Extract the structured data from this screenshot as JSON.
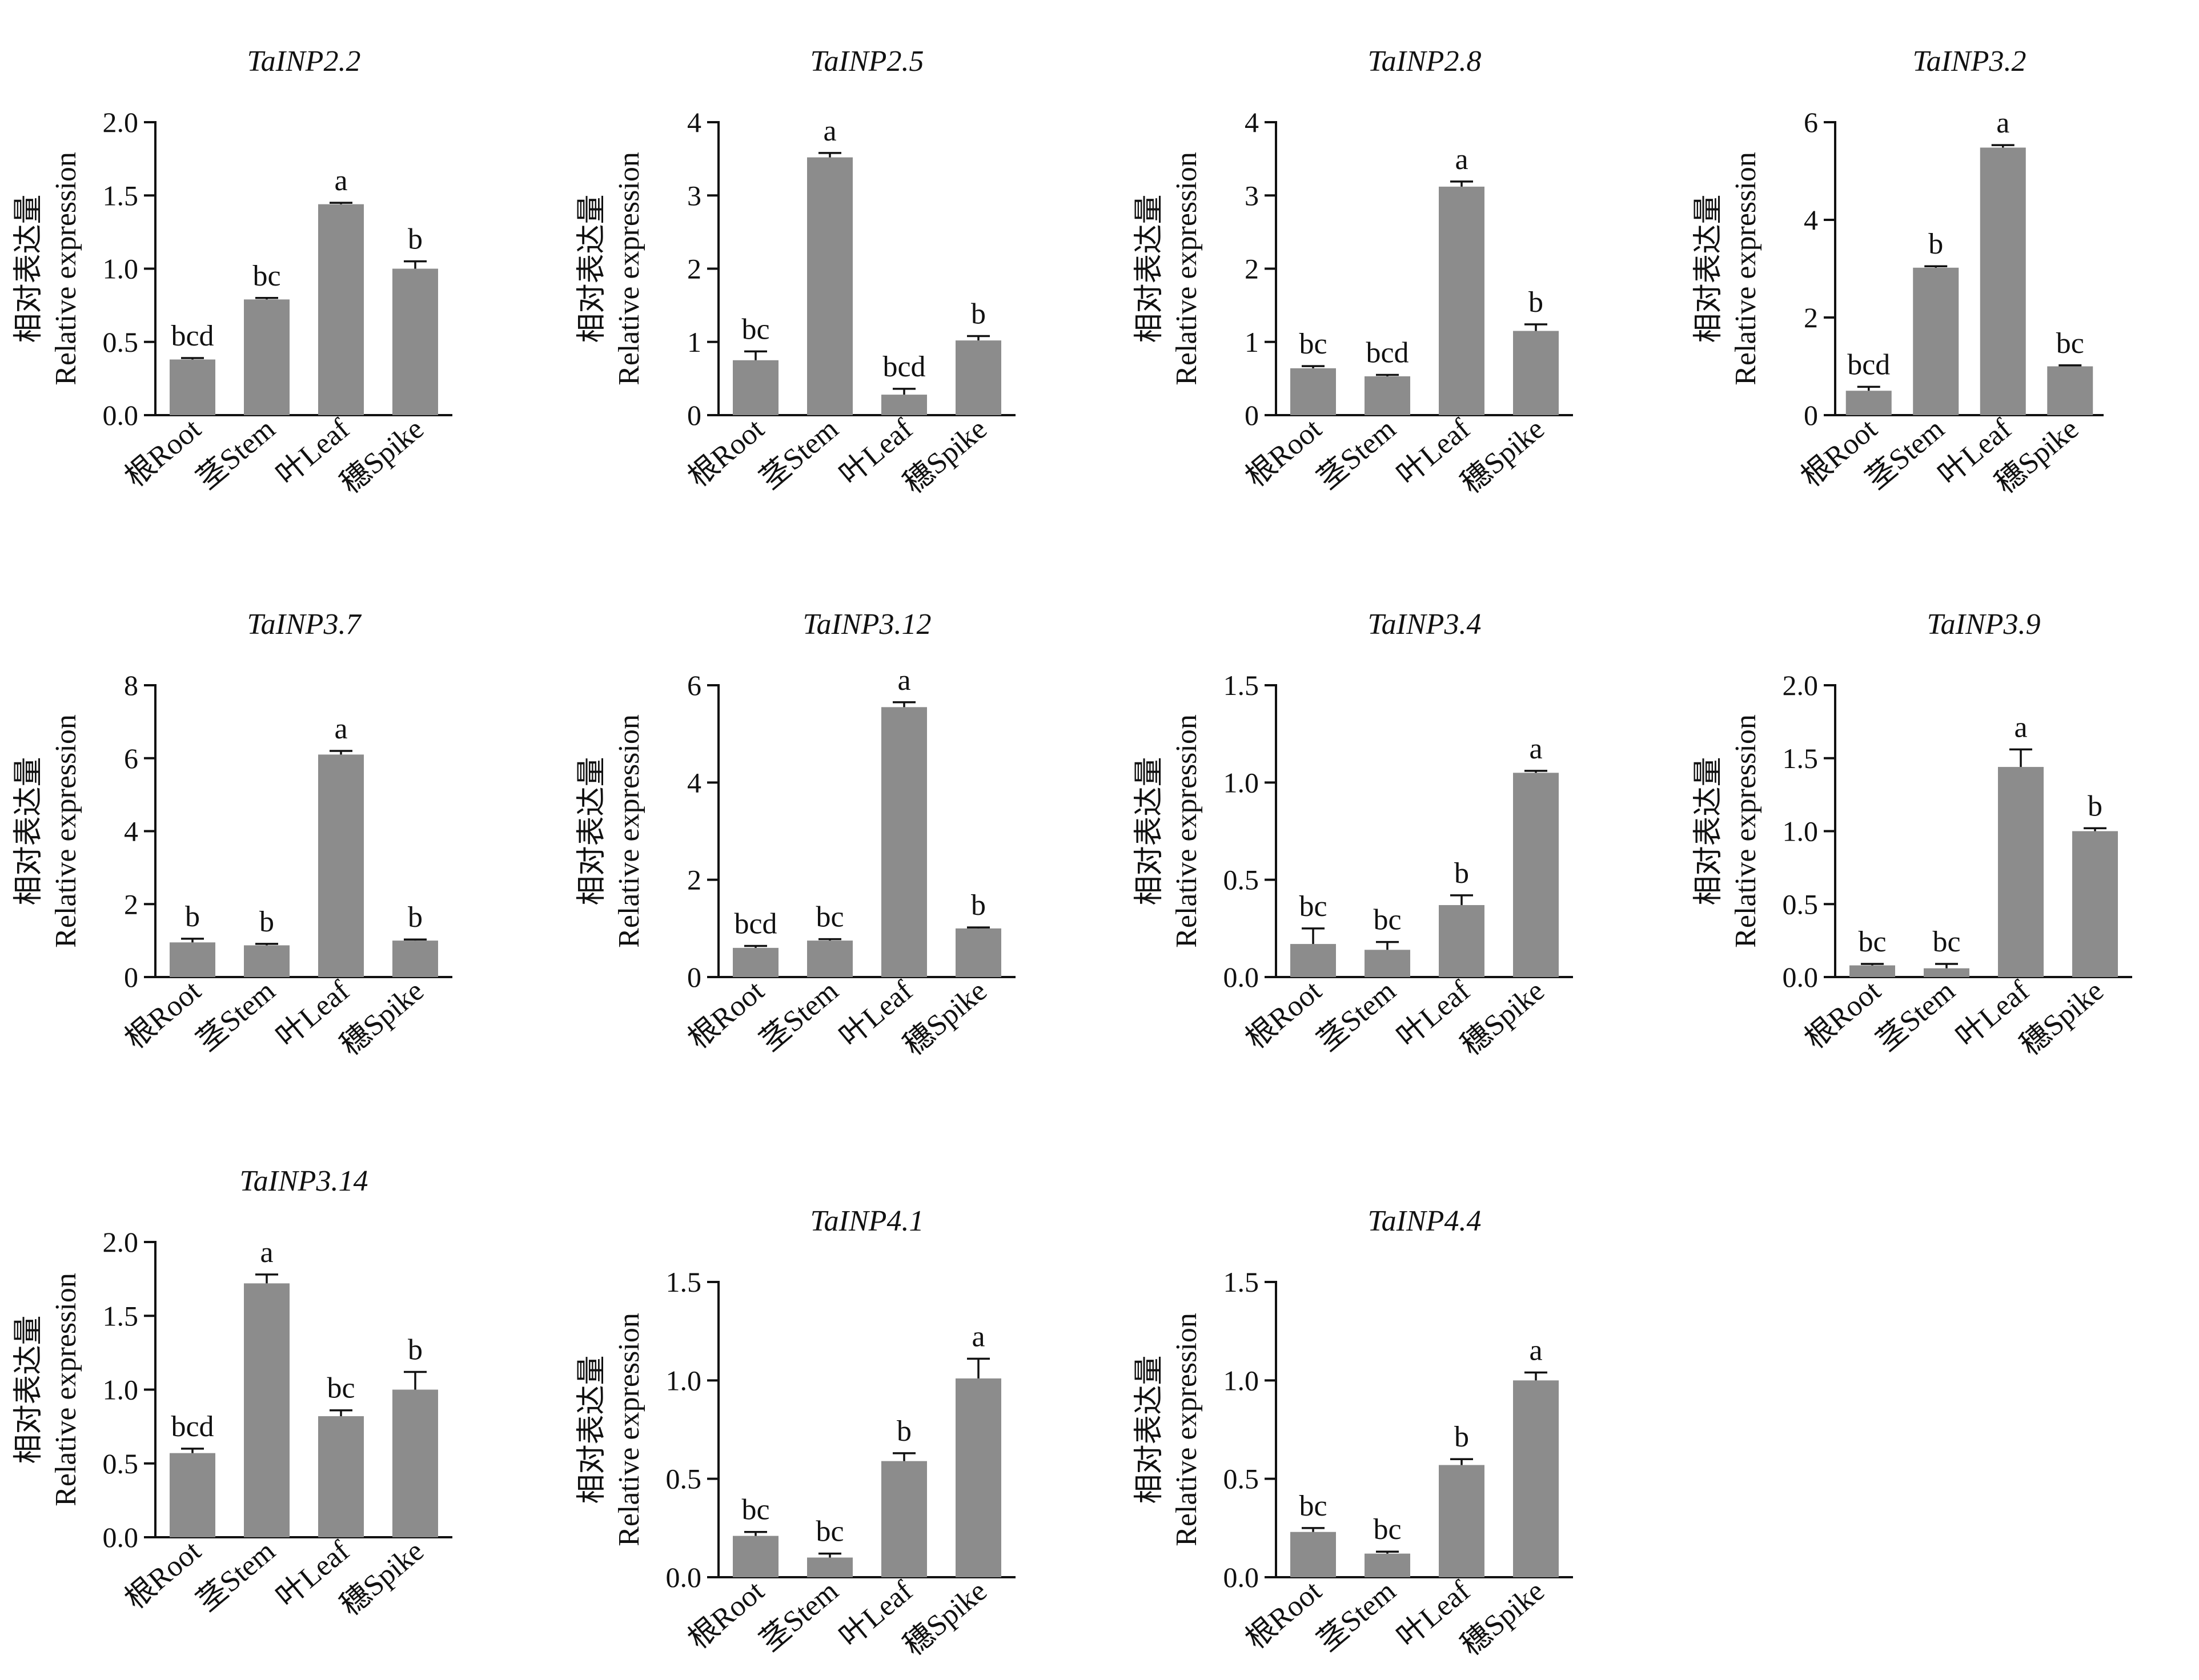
{
  "figure": {
    "ylabel_cn": "相对表达量",
    "ylabel_en": "Relative expression",
    "categories": [
      "根Root",
      "茎Stem",
      "叶Leaf",
      "穗Spike"
    ],
    "bar_color": "#8c8c8c"
  },
  "chart_data": [
    {
      "type": "bar",
      "title": "TaINP2.2",
      "categories": [
        "根Root",
        "茎Stem",
        "叶Leaf",
        "穗Spike"
      ],
      "values": [
        0.38,
        0.79,
        1.44,
        1.0
      ],
      "errors": [
        0.01,
        0.01,
        0.01,
        0.05
      ],
      "letters": [
        "bcd",
        "bc",
        "a",
        "b"
      ],
      "ylim": [
        0,
        2.0
      ],
      "yticks": [
        "0.0",
        "0.5",
        "1.0",
        "1.5",
        "2.0"
      ],
      "ylabel": "相对表达量 Relative expression"
    },
    {
      "type": "bar",
      "title": "TaINP2.5",
      "categories": [
        "根Root",
        "茎Stem",
        "叶Leaf",
        "穗Spike"
      ],
      "values": [
        0.75,
        3.52,
        0.28,
        1.02
      ],
      "errors": [
        0.12,
        0.06,
        0.08,
        0.06
      ],
      "letters": [
        "bc",
        "a",
        "bcd",
        "b"
      ],
      "ylim": [
        0,
        4
      ],
      "yticks": [
        "0",
        "1",
        "2",
        "3",
        "4"
      ],
      "ylabel": "相对表达量 Relative expression"
    },
    {
      "type": "bar",
      "title": "TaINP2.8",
      "categories": [
        "根Root",
        "茎Stem",
        "叶Leaf",
        "穗Spike"
      ],
      "values": [
        0.64,
        0.53,
        3.12,
        1.15
      ],
      "errors": [
        0.03,
        0.02,
        0.07,
        0.09
      ],
      "letters": [
        "bc",
        "bcd",
        "a",
        "b"
      ],
      "ylim": [
        0,
        4
      ],
      "yticks": [
        "0",
        "1",
        "2",
        "3",
        "4"
      ],
      "ylabel": "相对表达量 Relative expression"
    },
    {
      "type": "bar",
      "title": "TaINP3.2",
      "categories": [
        "根Root",
        "茎Stem",
        "叶Leaf",
        "穗Spike"
      ],
      "values": [
        0.5,
        3.02,
        5.48,
        1.0
      ],
      "errors": [
        0.08,
        0.03,
        0.05,
        0.02
      ],
      "letters": [
        "bcd",
        "b",
        "a",
        "bc"
      ],
      "ylim": [
        0,
        6
      ],
      "yticks": [
        "0",
        "2",
        "4",
        "6"
      ],
      "ylabel": "相对表达量 Relative expression"
    },
    {
      "type": "bar",
      "title": "TaINP3.7",
      "categories": [
        "根Root",
        "茎Stem",
        "叶Leaf",
        "穗Spike"
      ],
      "values": [
        0.95,
        0.87,
        6.1,
        1.0
      ],
      "errors": [
        0.1,
        0.04,
        0.1,
        0.03
      ],
      "letters": [
        "b",
        "b",
        "a",
        "b"
      ],
      "ylim": [
        0,
        8
      ],
      "yticks": [
        "0",
        "2",
        "4",
        "6",
        "8"
      ],
      "ylabel": "相对表达量 Relative expression"
    },
    {
      "type": "bar",
      "title": "TaINP3.12",
      "categories": [
        "根Root",
        "茎Stem",
        "叶Leaf",
        "穗Spike"
      ],
      "values": [
        0.6,
        0.75,
        5.55,
        1.0
      ],
      "errors": [
        0.04,
        0.03,
        0.1,
        0.02
      ],
      "letters": [
        "bcd",
        "bc",
        "a",
        "b"
      ],
      "ylim": [
        0,
        6
      ],
      "yticks": [
        "0",
        "2",
        "4",
        "6"
      ],
      "ylabel": "相对表达量 Relative expression"
    },
    {
      "type": "bar",
      "title": "TaINP3.4",
      "categories": [
        "根Root",
        "茎Stem",
        "叶Leaf",
        "穗Spike"
      ],
      "values": [
        0.17,
        0.14,
        0.37,
        1.05
      ],
      "errors": [
        0.08,
        0.04,
        0.05,
        0.01
      ],
      "letters": [
        "bc",
        "bc",
        "b",
        "a"
      ],
      "ylim": [
        0,
        1.5
      ],
      "yticks": [
        "0.0",
        "0.5",
        "1.0",
        "1.5"
      ],
      "ylabel": "相对表达量 Relative expression"
    },
    {
      "type": "bar",
      "title": "TaINP3.9",
      "categories": [
        "根Root",
        "茎Stem",
        "叶Leaf",
        "穗Spike"
      ],
      "values": [
        0.08,
        0.06,
        1.44,
        1.0
      ],
      "errors": [
        0.01,
        0.03,
        0.12,
        0.02
      ],
      "letters": [
        "bc",
        "bc",
        "a",
        "b"
      ],
      "ylim": [
        0,
        2.0
      ],
      "yticks": [
        "0.0",
        "0.5",
        "1.0",
        "1.5",
        "2.0"
      ],
      "ylabel": "相对表达量 Relative expression"
    },
    {
      "type": "bar",
      "title": "TaINP3.14",
      "categories": [
        "根Root",
        "茎Stem",
        "叶Leaf",
        "穗Spike"
      ],
      "values": [
        0.57,
        1.72,
        0.82,
        1.0
      ],
      "errors": [
        0.03,
        0.06,
        0.04,
        0.12
      ],
      "letters": [
        "bcd",
        "a",
        "bc",
        "b"
      ],
      "ylim": [
        0,
        2.0
      ],
      "yticks": [
        "0.0",
        "0.5",
        "1.0",
        "1.5",
        "2.0"
      ],
      "ylabel": "相对表达量 Relative expression"
    },
    {
      "type": "bar",
      "title": "TaINP4.1",
      "categories": [
        "根Root",
        "茎Stem",
        "叶Leaf",
        "穗Spike"
      ],
      "values": [
        0.21,
        0.1,
        0.59,
        1.01
      ],
      "errors": [
        0.02,
        0.02,
        0.04,
        0.1
      ],
      "letters": [
        "bc",
        "bc",
        "b",
        "a"
      ],
      "ylim": [
        0,
        1.5
      ],
      "yticks": [
        "0.0",
        "0.5",
        "1.0",
        "1.5"
      ],
      "ylabel": "相对表达量 Relative expression"
    },
    {
      "type": "bar",
      "title": "TaINP4.4",
      "categories": [
        "根Root",
        "茎Stem",
        "叶Leaf",
        "穗Spike"
      ],
      "values": [
        0.23,
        0.12,
        0.57,
        1.0
      ],
      "errors": [
        0.02,
        0.01,
        0.03,
        0.04
      ],
      "letters": [
        "bc",
        "bc",
        "b",
        "a"
      ],
      "ylim": [
        0,
        1.5
      ],
      "yticks": [
        "0.0",
        "0.5",
        "1.0",
        "1.5"
      ],
      "ylabel": "相对表达量 Relative expression"
    }
  ]
}
